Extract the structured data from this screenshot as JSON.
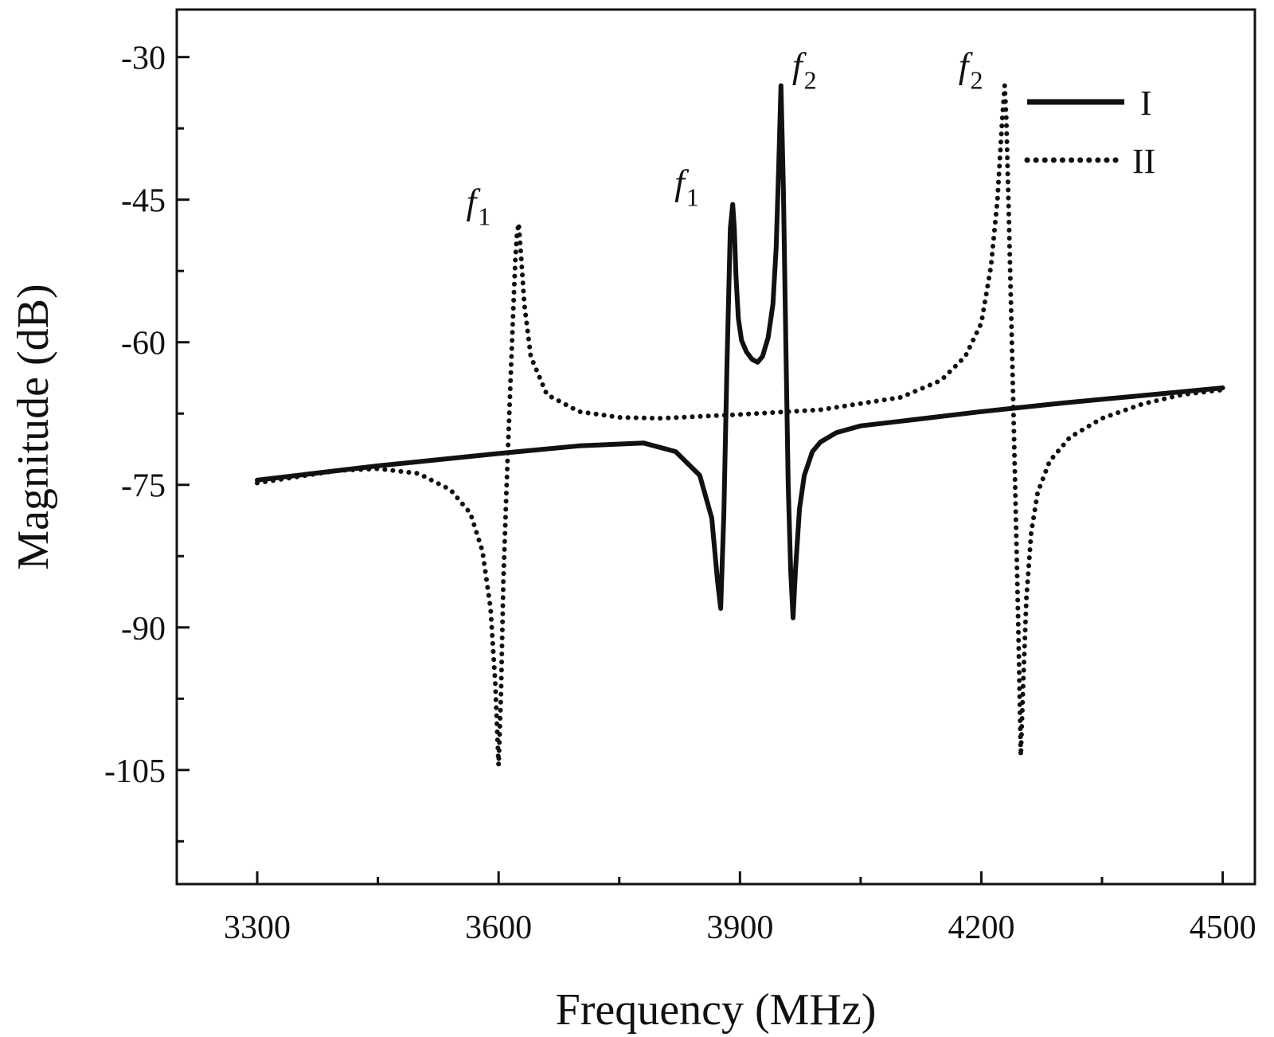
{
  "chart_data": {
    "type": "line",
    "xlabel": "Frequency (MHz)",
    "ylabel": "Magnitude (dB)",
    "xlim": [
      3200,
      4540
    ],
    "ylim": [
      -117,
      -25
    ],
    "xticks": [
      3300,
      3600,
      3900,
      4200,
      4500
    ],
    "yticks": [
      -30,
      -45,
      -60,
      -75,
      -90,
      -105
    ],
    "xtick_labels": [
      "3300",
      "3600",
      "3900",
      "4200",
      "4500"
    ],
    "ytick_labels": [
      "-30",
      "-45",
      "-60",
      "-75",
      "-90",
      "-105"
    ],
    "legend_position": "top-right",
    "series": [
      {
        "name": "I",
        "style": "solid",
        "x": [
          3300,
          3450,
          3600,
          3700,
          3780,
          3820,
          3850,
          3865,
          3872,
          3876,
          3880,
          3884,
          3888,
          3891,
          3893,
          3895,
          3898,
          3902,
          3908,
          3915,
          3922,
          3928,
          3935,
          3941,
          3945,
          3948,
          3951,
          3954,
          3957,
          3960,
          3963,
          3966,
          3969,
          3974,
          3980,
          3990,
          4000,
          4020,
          4050,
          4100,
          4200,
          4300,
          4400,
          4500
        ],
        "y": [
          -74.5,
          -73.0,
          -71.7,
          -70.9,
          -70.6,
          -71.5,
          -74.0,
          -78.5,
          -85.0,
          -88.0,
          -78.0,
          -62.0,
          -48.0,
          -45.5,
          -48.0,
          -53.0,
          -57.5,
          -59.8,
          -61.0,
          -61.8,
          -62.1,
          -61.5,
          -59.5,
          -56.0,
          -50.0,
          -42.0,
          -33.0,
          -44.0,
          -60.0,
          -75.0,
          -84.0,
          -89.0,
          -84.0,
          -77.5,
          -74.0,
          -71.5,
          -70.5,
          -69.5,
          -68.8,
          -68.3,
          -67.3,
          -66.4,
          -65.6,
          -64.8
        ],
        "label_f1": {
          "text": "f",
          "sub": "1",
          "x": 3880,
          "y": -45.5
        },
        "label_f2": {
          "text": "f",
          "sub": "2",
          "x": 3951,
          "y": -33
        }
      },
      {
        "name": "II",
        "style": "dotted",
        "x": [
          3300,
          3400,
          3450,
          3500,
          3540,
          3565,
          3580,
          3590,
          3596,
          3600,
          3603,
          3606,
          3610,
          3614,
          3618,
          3621,
          3623,
          3625,
          3628,
          3632,
          3640,
          3660,
          3700,
          3750,
          3800,
          3900,
          4000,
          4100,
          4150,
          4180,
          4200,
          4212,
          4220,
          4226,
          4229,
          4231,
          4234,
          4238,
          4242,
          4246,
          4249,
          4252,
          4256,
          4262,
          4270,
          4285,
          4310,
          4350,
          4400,
          4450,
          4500
        ],
        "y": [
          -74.8,
          -73.5,
          -73.3,
          -73.8,
          -75.5,
          -78.0,
          -82.0,
          -88.0,
          -96.0,
          -104.5,
          -97.0,
          -85.0,
          -75.0,
          -66.0,
          -57.0,
          -51.0,
          -48.5,
          -47.5,
          -51.0,
          -56.0,
          -61.5,
          -65.5,
          -67.3,
          -67.9,
          -68.0,
          -67.6,
          -67.1,
          -65.8,
          -64.0,
          -61.5,
          -58.0,
          -52.0,
          -45.0,
          -36.5,
          -33.0,
          -36.5,
          -46.0,
          -60.0,
          -75.0,
          -90.0,
          -103.5,
          -96.0,
          -87.0,
          -80.0,
          -75.8,
          -72.5,
          -70.0,
          -68.0,
          -66.5,
          -65.5,
          -65.0
        ],
        "label_f1": {
          "text": "f",
          "sub": "1",
          "x": 3625,
          "y": -47.5
        },
        "label_f2": {
          "text": "f",
          "sub": "2",
          "x": 4229,
          "y": -33
        }
      }
    ]
  }
}
